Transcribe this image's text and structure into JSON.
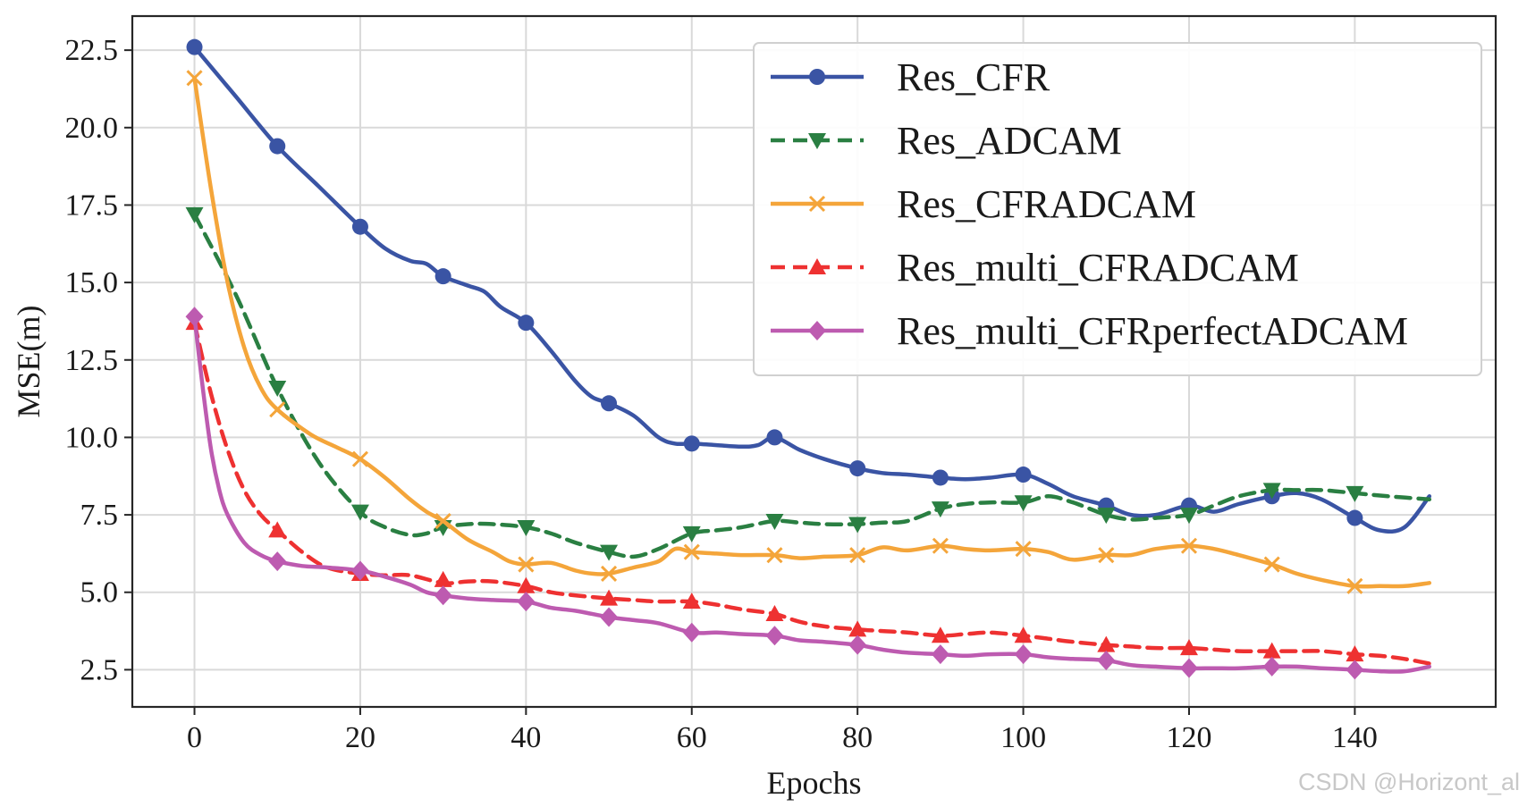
{
  "watermark": "CSDN @Horizont_al",
  "chart_data": {
    "type": "line",
    "xlabel": "Epochs",
    "ylabel": "MSE(m)",
    "xlim": [
      -7.5,
      157
    ],
    "ylim": [
      1.3,
      23.6
    ],
    "xticks": [
      0,
      20,
      40,
      60,
      80,
      100,
      120,
      140
    ],
    "yticks": [
      2.5,
      5.0,
      7.5,
      10.0,
      12.5,
      15.0,
      17.5,
      20.0,
      22.5
    ],
    "yticks_text": [
      "2.5",
      "5.0",
      "7.5",
      "10.0",
      "12.5",
      "15.0",
      "17.5",
      "20.0",
      "22.5"
    ],
    "grid": true,
    "legend_position": "top-right",
    "series": [
      {
        "name": "Res_CFR",
        "color": "#3a54a4",
        "dash": "solid",
        "marker": "circle",
        "markers_x": [
          0,
          10,
          20,
          30,
          40,
          50,
          60,
          70,
          80,
          90,
          100,
          110,
          120,
          130,
          140
        ],
        "markers_y": [
          22.6,
          19.4,
          16.8,
          15.2,
          13.7,
          11.1,
          9.8,
          10.0,
          9.0,
          8.7,
          8.8,
          7.8,
          7.8,
          8.1,
          7.4
        ],
        "x": [
          0,
          5,
          10,
          15,
          20,
          23,
          26,
          28,
          30,
          33,
          35,
          37,
          40,
          43,
          46,
          48,
          50,
          53,
          56,
          58,
          60,
          63,
          66,
          68,
          70,
          73,
          76,
          80,
          83,
          86,
          90,
          93,
          96,
          100,
          103,
          106,
          110,
          113,
          116,
          120,
          123,
          126,
          130,
          133,
          136,
          140,
          143,
          146,
          149
        ],
        "y": [
          22.6,
          21.0,
          19.4,
          18.1,
          16.8,
          16.1,
          15.7,
          15.6,
          15.2,
          14.9,
          14.7,
          14.2,
          13.7,
          12.8,
          11.8,
          11.3,
          11.1,
          10.7,
          10.0,
          9.8,
          9.8,
          9.75,
          9.7,
          9.75,
          10.0,
          9.6,
          9.3,
          9.0,
          8.85,
          8.8,
          8.7,
          8.65,
          8.7,
          8.8,
          8.5,
          8.1,
          7.8,
          7.5,
          7.5,
          7.8,
          7.6,
          7.85,
          8.1,
          8.2,
          8.0,
          7.4,
          7.0,
          7.1,
          8.1
        ]
      },
      {
        "name": "Res_ADCAM",
        "color": "#2a7f42",
        "dash": "dashed",
        "marker": "triangle-down",
        "markers_x": [
          0,
          10,
          20,
          30,
          40,
          50,
          60,
          70,
          80,
          90,
          100,
          110,
          120,
          130,
          140
        ],
        "markers_y": [
          17.2,
          11.6,
          7.6,
          7.1,
          7.1,
          6.3,
          6.9,
          7.3,
          7.2,
          7.7,
          7.9,
          7.5,
          7.5,
          8.3,
          8.2
        ],
        "x": [
          0,
          5,
          10,
          15,
          20,
          23,
          26,
          28,
          30,
          33,
          36,
          40,
          43,
          46,
          50,
          53,
          56,
          60,
          63,
          66,
          70,
          73,
          76,
          80,
          83,
          86,
          90,
          93,
          96,
          100,
          103,
          106,
          110,
          113,
          116,
          120,
          123,
          126,
          130,
          133,
          136,
          140,
          144,
          149
        ],
        "y": [
          17.2,
          14.6,
          11.6,
          9.2,
          7.6,
          7.1,
          6.85,
          6.9,
          7.1,
          7.2,
          7.2,
          7.1,
          6.9,
          6.6,
          6.3,
          6.15,
          6.4,
          6.9,
          7.0,
          7.1,
          7.3,
          7.25,
          7.2,
          7.2,
          7.25,
          7.3,
          7.7,
          7.85,
          7.9,
          7.9,
          8.1,
          7.9,
          7.5,
          7.35,
          7.4,
          7.5,
          7.8,
          8.1,
          8.3,
          8.3,
          8.3,
          8.2,
          8.1,
          8.0
        ]
      },
      {
        "name": "Res_CFRADCAM",
        "color": "#f4a53a",
        "dash": "solid",
        "marker": "x",
        "markers_x": [
          0,
          10,
          20,
          30,
          40,
          50,
          60,
          70,
          80,
          90,
          100,
          110,
          120,
          130,
          140
        ],
        "markers_y": [
          21.6,
          10.9,
          9.3,
          7.3,
          5.9,
          5.6,
          6.3,
          6.2,
          6.2,
          6.5,
          6.4,
          6.2,
          6.5,
          5.9,
          5.2
        ],
        "x": [
          0,
          2,
          4,
          6,
          8,
          10,
          14,
          17,
          20,
          23,
          26,
          28,
          30,
          33,
          36,
          38,
          40,
          43,
          46,
          48,
          50,
          53,
          56,
          58,
          60,
          63,
          66,
          70,
          73,
          76,
          80,
          83,
          86,
          90,
          93,
          96,
          100,
          103,
          106,
          110,
          113,
          116,
          120,
          123,
          126,
          130,
          133,
          136,
          140,
          143,
          146,
          149
        ],
        "y": [
          21.6,
          18.0,
          15.0,
          12.9,
          11.6,
          10.9,
          10.1,
          9.7,
          9.3,
          8.7,
          8.0,
          7.6,
          7.3,
          6.7,
          6.3,
          6.0,
          5.9,
          5.95,
          5.7,
          5.6,
          5.6,
          5.8,
          6.0,
          6.4,
          6.3,
          6.25,
          6.2,
          6.2,
          6.1,
          6.15,
          6.2,
          6.45,
          6.35,
          6.5,
          6.4,
          6.35,
          6.4,
          6.3,
          6.05,
          6.2,
          6.2,
          6.4,
          6.5,
          6.4,
          6.2,
          5.9,
          5.6,
          5.4,
          5.2,
          5.2,
          5.2,
          5.3
        ]
      },
      {
        "name": "Res_multi_CFRADCAM",
        "color": "#ee3131",
        "dash": "dashed",
        "marker": "triangle-up",
        "markers_x": [
          0,
          10,
          20,
          30,
          40,
          50,
          60,
          70,
          80,
          90,
          100,
          110,
          120,
          130,
          140
        ],
        "markers_y": [
          13.7,
          7.0,
          5.6,
          5.4,
          5.2,
          4.8,
          4.7,
          4.3,
          3.8,
          3.6,
          3.6,
          3.3,
          3.2,
          3.1,
          3.0
        ],
        "x": [
          0,
          2,
          4,
          6,
          8,
          10,
          13,
          16,
          20,
          23,
          26,
          30,
          33,
          36,
          40,
          43,
          46,
          50,
          53,
          56,
          60,
          63,
          66,
          70,
          73,
          76,
          80,
          83,
          86,
          90,
          93,
          96,
          100,
          103,
          106,
          110,
          113,
          116,
          120,
          123,
          126,
          130,
          133,
          136,
          140,
          143,
          146,
          149
        ],
        "y": [
          13.7,
          11.4,
          9.6,
          8.3,
          7.5,
          7.0,
          6.3,
          5.8,
          5.6,
          5.55,
          5.55,
          5.3,
          5.35,
          5.35,
          5.2,
          5.0,
          4.9,
          4.8,
          4.75,
          4.7,
          4.7,
          4.6,
          4.45,
          4.3,
          4.05,
          3.9,
          3.8,
          3.75,
          3.7,
          3.6,
          3.65,
          3.7,
          3.6,
          3.5,
          3.4,
          3.3,
          3.25,
          3.2,
          3.2,
          3.15,
          3.1,
          3.1,
          3.1,
          3.1,
          3.0,
          2.95,
          2.85,
          2.7
        ]
      },
      {
        "name": "Res_multi_CFRperfectADCAM",
        "color": "#bd5bb0",
        "dash": "solid",
        "marker": "diamond",
        "markers_x": [
          0,
          10,
          20,
          30,
          40,
          50,
          60,
          70,
          80,
          90,
          100,
          110,
          120,
          130,
          140
        ],
        "markers_y": [
          13.9,
          6.0,
          5.7,
          4.9,
          4.7,
          4.2,
          3.7,
          3.6,
          3.3,
          3.0,
          3.0,
          2.8,
          2.55,
          2.6,
          2.5
        ],
        "x": [
          0,
          1,
          2,
          3,
          4,
          6,
          8,
          10,
          13,
          16,
          20,
          23,
          26,
          28,
          30,
          33,
          36,
          40,
          43,
          46,
          50,
          53,
          56,
          60,
          63,
          66,
          70,
          73,
          76,
          80,
          83,
          86,
          90,
          93,
          96,
          100,
          103,
          106,
          110,
          113,
          116,
          120,
          123,
          126,
          130,
          133,
          136,
          140,
          143,
          146,
          149
        ],
        "y": [
          13.9,
          11.6,
          9.6,
          8.3,
          7.5,
          6.6,
          6.2,
          6.0,
          5.85,
          5.8,
          5.7,
          5.5,
          5.25,
          5.0,
          4.9,
          4.8,
          4.75,
          4.7,
          4.5,
          4.4,
          4.2,
          4.1,
          4.0,
          3.7,
          3.7,
          3.65,
          3.6,
          3.45,
          3.4,
          3.3,
          3.15,
          3.05,
          3.0,
          2.95,
          3.0,
          3.0,
          2.9,
          2.85,
          2.8,
          2.65,
          2.6,
          2.55,
          2.55,
          2.55,
          2.6,
          2.6,
          2.55,
          2.5,
          2.45,
          2.45,
          2.6
        ]
      }
    ]
  }
}
